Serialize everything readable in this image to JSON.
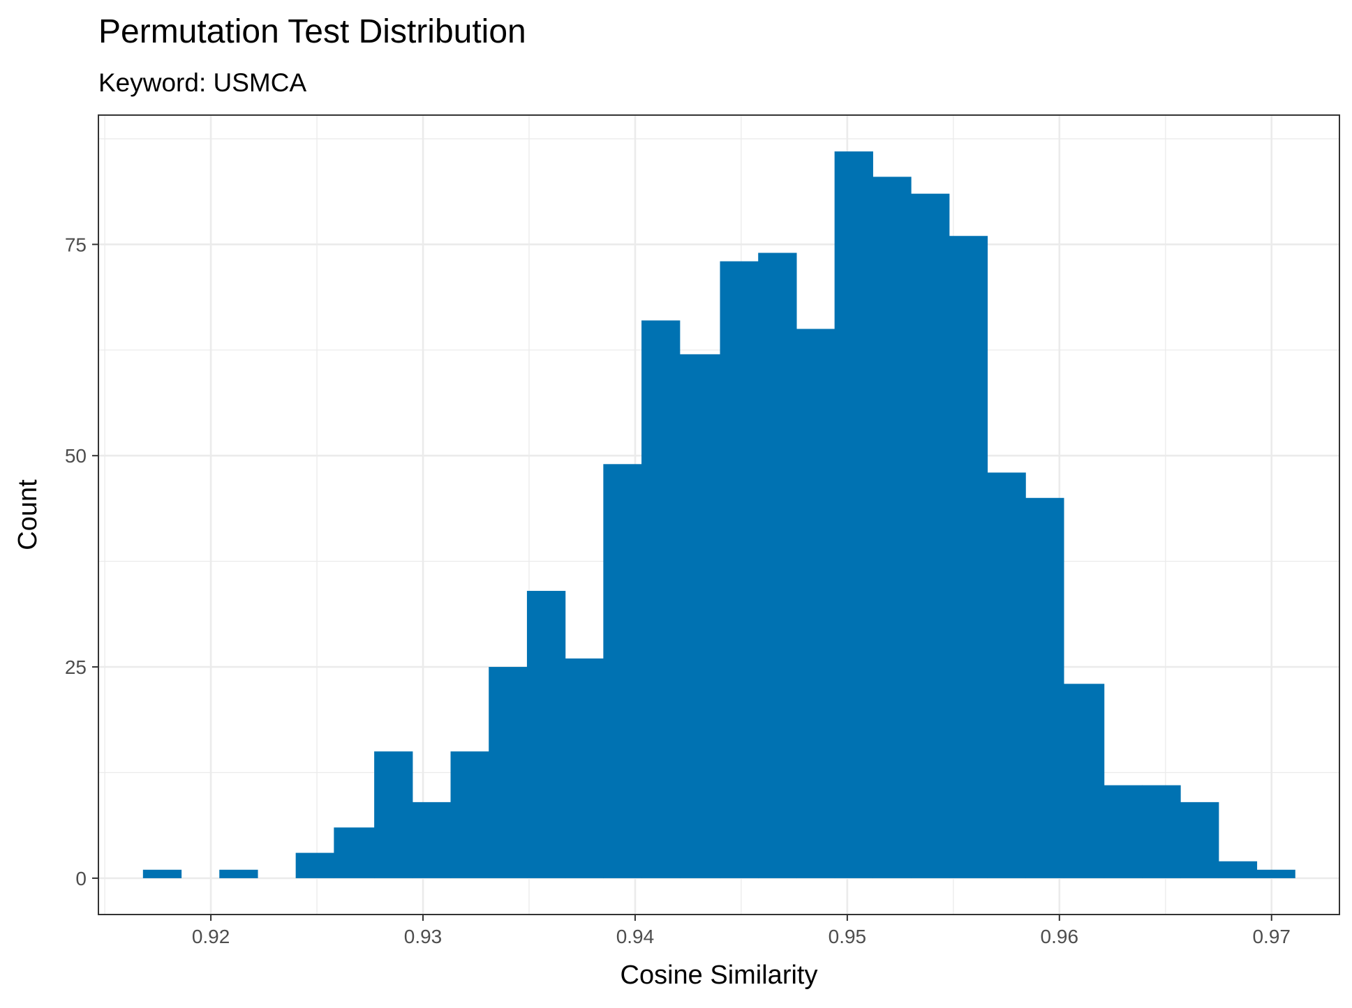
{
  "chart_data": {
    "type": "bar",
    "title": "Permutation Test Distribution",
    "subtitle": "Keyword: USMCA",
    "xlabel": "Cosine Similarity",
    "ylabel": "Count",
    "xlim": [
      0.9147,
      0.9732
    ],
    "ylim": [
      -4.3,
      90.3
    ],
    "x_ticks": [
      0.92,
      0.93,
      0.94,
      0.95,
      0.96,
      0.97
    ],
    "x_tick_labels": [
      "0.92",
      "0.93",
      "0.94",
      "0.95",
      "0.96",
      "0.97"
    ],
    "x_minor_ticks": [
      0.915,
      0.925,
      0.935,
      0.945,
      0.955,
      0.965
    ],
    "y_ticks": [
      0,
      25,
      50,
      75
    ],
    "y_tick_labels": [
      "0",
      "25",
      "50",
      "75"
    ],
    "y_minor_ticks": [
      12.5,
      37.5,
      62.5,
      87.5
    ],
    "grid": true,
    "bar_color": "#0072B2",
    "bins": [
      {
        "x0": 0.9168,
        "x1": 0.9186,
        "count": 1
      },
      {
        "x0": 0.9186,
        "x1": 0.9204,
        "count": 0
      },
      {
        "x0": 0.9204,
        "x1": 0.9222,
        "count": 1
      },
      {
        "x0": 0.9222,
        "x1": 0.924,
        "count": 0
      },
      {
        "x0": 0.924,
        "x1": 0.9258,
        "count": 3
      },
      {
        "x0": 0.9258,
        "x1": 0.9277,
        "count": 6
      },
      {
        "x0": 0.9277,
        "x1": 0.9295,
        "count": 15
      },
      {
        "x0": 0.9295,
        "x1": 0.9313,
        "count": 9
      },
      {
        "x0": 0.9313,
        "x1": 0.9331,
        "count": 15
      },
      {
        "x0": 0.9331,
        "x1": 0.9349,
        "count": 25
      },
      {
        "x0": 0.9349,
        "x1": 0.9367,
        "count": 34
      },
      {
        "x0": 0.9367,
        "x1": 0.9385,
        "count": 26
      },
      {
        "x0": 0.9385,
        "x1": 0.9403,
        "count": 49
      },
      {
        "x0": 0.9403,
        "x1": 0.9421,
        "count": 66
      },
      {
        "x0": 0.9421,
        "x1": 0.944,
        "count": 62
      },
      {
        "x0": 0.944,
        "x1": 0.9458,
        "count": 73
      },
      {
        "x0": 0.9458,
        "x1": 0.9476,
        "count": 74
      },
      {
        "x0": 0.9476,
        "x1": 0.9494,
        "count": 65
      },
      {
        "x0": 0.9494,
        "x1": 0.9512,
        "count": 86
      },
      {
        "x0": 0.9512,
        "x1": 0.953,
        "count": 83
      },
      {
        "x0": 0.953,
        "x1": 0.9548,
        "count": 81
      },
      {
        "x0": 0.9548,
        "x1": 0.9566,
        "count": 76
      },
      {
        "x0": 0.9566,
        "x1": 0.9584,
        "count": 48
      },
      {
        "x0": 0.9584,
        "x1": 0.9602,
        "count": 45
      },
      {
        "x0": 0.9602,
        "x1": 0.9621,
        "count": 23
      },
      {
        "x0": 0.9621,
        "x1": 0.9639,
        "count": 11
      },
      {
        "x0": 0.9639,
        "x1": 0.9657,
        "count": 11
      },
      {
        "x0": 0.9657,
        "x1": 0.9675,
        "count": 9
      },
      {
        "x0": 0.9675,
        "x1": 0.9693,
        "count": 2
      },
      {
        "x0": 0.9693,
        "x1": 0.9711,
        "count": 1
      }
    ]
  }
}
